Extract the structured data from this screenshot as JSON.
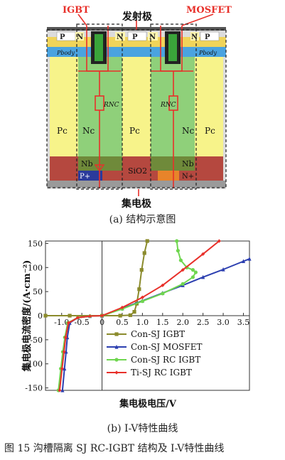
{
  "structure": {
    "label_igbt": "IGBT",
    "label_mosfet": "MOSFET",
    "label_emitter": "发射极",
    "label_collector": "集电极",
    "label_p_left": "P",
    "label_n_left": "N",
    "label_n_mid1": "N",
    "label_p_mid": "P",
    "label_n_mid2": "N",
    "label_n_right": "N",
    "label_p_right": "P",
    "label_pbody": "Pbody",
    "label_rnc": "RNC",
    "label_pc": "Pc",
    "label_nc": "Nc",
    "label_nb": "Nb",
    "label_sio2": "SiO2",
    "label_pplus": "P+",
    "label_nplus": "N+"
  },
  "captions": {
    "sub_a": "(a) 结构示意图",
    "sub_b": "(b) I-V特性曲线",
    "figure": "图 15   沟槽隔离 SJ RC-IGBT 结构及 I-V特性曲线"
  },
  "colors": {
    "pc_yellow": "#f7f38a",
    "nc_green": "#8fd07a",
    "nb_olive": "#6f8a3a",
    "sio2_red": "#b5483f",
    "pplus_blue": "#2a3a9c",
    "nplus_orange": "#e8842a",
    "pbody_blue": "#4aa3e0",
    "wire_red": "#e8302a",
    "con_sj_igbt": "#8b8b2c",
    "con_sj_mosfet": "#2c3fb0",
    "con_sj_rc_igbt": "#6fd64f",
    "ti_sj_rc_igbt": "#e8302a"
  },
  "chart_data": {
    "type": "line",
    "xlabel": "集电极电压/V",
    "ylabel": "集电极电流密度/(A·cm⁻²)",
    "xlim": [
      -1.4,
      3.65
    ],
    "ylim": [
      -155,
      155
    ],
    "x_ticks": [
      -1.0,
      -0.5,
      0,
      0.5,
      1.0,
      1.5,
      2.0,
      2.5,
      3.0,
      3.5
    ],
    "x_tick_labels": [
      "-1.0",
      "-0.5",
      "0",
      "0.5",
      "1.0",
      "1.5",
      "2.0",
      "2.5",
      "3.0",
      "3.5"
    ],
    "y_ticks": [
      -150,
      -100,
      -50,
      0,
      50,
      100,
      150
    ],
    "y_tick_labels": [
      "-150",
      "-100",
      "-50",
      "0",
      "50",
      "100",
      "150"
    ],
    "legend_position": "bottom-right",
    "series": [
      {
        "name": "Con-SJ IGBT",
        "color": "#8b8b2c",
        "marker": "square",
        "points": [
          [
            -1.4,
            0
          ],
          [
            -0.8,
            0
          ],
          [
            0,
            0
          ],
          [
            0.45,
            0
          ],
          [
            0.7,
            1
          ],
          [
            0.8,
            8
          ],
          [
            0.86,
            25
          ],
          [
            0.92,
            55
          ],
          [
            0.98,
            95
          ],
          [
            1.05,
            130
          ],
          [
            1.12,
            155
          ]
        ]
      },
      {
        "name": "Con-SJ MOSFET",
        "color": "#2c3fb0",
        "marker": "triangle",
        "points": [
          [
            -0.98,
            -155
          ],
          [
            -0.93,
            -110
          ],
          [
            -0.89,
            -75
          ],
          [
            -0.86,
            -45
          ],
          [
            -0.8,
            -15
          ],
          [
            -0.6,
            -4
          ],
          [
            -0.3,
            -1
          ],
          [
            0,
            0
          ],
          [
            0.5,
            15
          ],
          [
            1.0,
            31
          ],
          [
            1.5,
            47
          ],
          [
            2.0,
            63
          ],
          [
            2.5,
            80
          ],
          [
            3.0,
            96
          ],
          [
            3.5,
            113
          ],
          [
            3.65,
            118
          ]
        ]
      },
      {
        "name": "Con-SJ RC IGBT",
        "color": "#6fd64f",
        "marker": "circle",
        "points": [
          [
            -1.08,
            -155
          ],
          [
            -1.02,
            -110
          ],
          [
            -0.97,
            -75
          ],
          [
            -0.92,
            -45
          ],
          [
            -0.85,
            -15
          ],
          [
            -0.6,
            -4
          ],
          [
            -0.3,
            -1
          ],
          [
            0,
            0
          ],
          [
            0.5,
            14
          ],
          [
            1.0,
            30
          ],
          [
            1.5,
            46
          ],
          [
            2.0,
            66
          ],
          [
            2.25,
            80
          ],
          [
            2.32,
            90
          ],
          [
            2.25,
            95
          ],
          [
            2.1,
            100
          ],
          [
            1.95,
            115
          ],
          [
            1.88,
            135
          ],
          [
            1.85,
            155
          ]
        ]
      },
      {
        "name": "Ti-SJ RC IGBT",
        "color": "#e8302a",
        "marker": "diamond",
        "points": [
          [
            -1.05,
            -155
          ],
          [
            -0.99,
            -110
          ],
          [
            -0.94,
            -75
          ],
          [
            -0.9,
            -45
          ],
          [
            -0.83,
            -15
          ],
          [
            -0.6,
            -4
          ],
          [
            -0.3,
            -1
          ],
          [
            0,
            0
          ],
          [
            0.5,
            17
          ],
          [
            1.0,
            38
          ],
          [
            1.5,
            63
          ],
          [
            2.0,
            95
          ],
          [
            2.5,
            128
          ],
          [
            2.9,
            155
          ]
        ]
      }
    ]
  }
}
